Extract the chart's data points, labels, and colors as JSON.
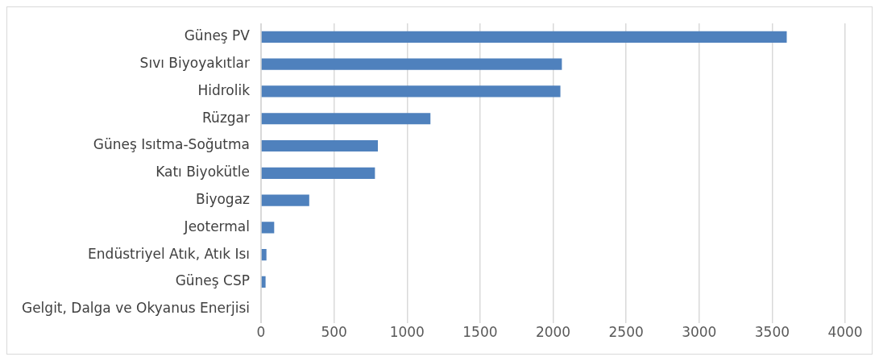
{
  "chart_data": {
    "type": "bar",
    "orientation": "horizontal",
    "categories": [
      "Güneş PV",
      "Sıvı Biyoyakıtlar",
      "Hidrolik",
      "Rüzgar",
      "Güneş Isıtma-Soğutma",
      "Katı Biyokütle",
      "Biyogaz",
      "Jeotermal",
      "Endüstriyel Atık, Atık Isı",
      "Güneş CSP",
      "Gelgit, Dalga ve Okyanus Enerjisi"
    ],
    "values": [
      3600,
      2060,
      2050,
      1160,
      800,
      780,
      330,
      90,
      37,
      31,
      null
    ],
    "color": "#4f81bd",
    "xlim": [
      0,
      4000
    ],
    "xticks": [
      0,
      500,
      1000,
      1500,
      2000,
      2500,
      3000,
      3500,
      4000
    ],
    "grid": "x",
    "legend": false
  }
}
